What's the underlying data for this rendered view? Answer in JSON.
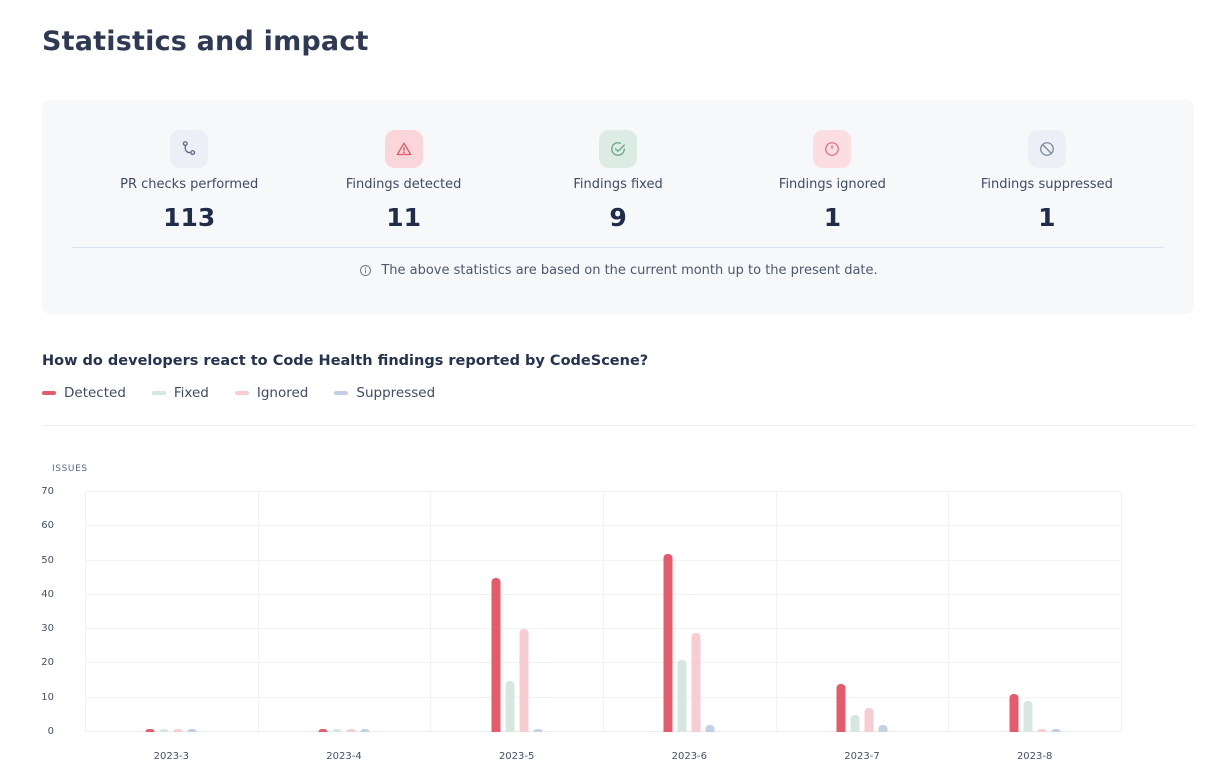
{
  "page": {
    "title": "Statistics and impact"
  },
  "stats_panel": {
    "items": [
      {
        "label": "PR checks performed",
        "value": "113",
        "icon": "pull-request",
        "icon_color": "#5d6c86",
        "icon_bg": "#eceff5"
      },
      {
        "label": "Findings detected",
        "value": "11",
        "icon": "warning-triangle",
        "icon_color": "#e05a68",
        "icon_bg": "#fad6da"
      },
      {
        "label": "Findings fixed",
        "value": "9",
        "icon": "check-circle",
        "icon_color": "#69a78c",
        "icon_bg": "#dcece4"
      },
      {
        "label": "Findings ignored",
        "value": "1",
        "icon": "alert-circle",
        "icon_color": "#e2737e",
        "icon_bg": "#fcdee1"
      },
      {
        "label": "Findings suppressed",
        "value": "1",
        "icon": "ban",
        "icon_color": "#7d8a9e",
        "icon_bg": "#eceff5"
      }
    ],
    "note": "The above statistics are based on the current month up to the present date."
  },
  "section": {
    "heading": "How do developers react to Code Health findings reported by CodeScene?"
  },
  "chart_data": {
    "type": "bar",
    "title": "",
    "xlabel": "",
    "ylabel": "ISSUES",
    "categories": [
      "2023-3",
      "2023-4",
      "2023-5",
      "2023-6",
      "2023-7",
      "2023-8"
    ],
    "series": [
      {
        "name": "Detected",
        "color": "#e45b6b",
        "values": [
          1,
          1,
          45,
          52,
          14,
          11
        ]
      },
      {
        "name": "Fixed",
        "color": "#d5e7de",
        "values": [
          1,
          1,
          15,
          21,
          5,
          9
        ]
      },
      {
        "name": "Ignored",
        "color": "#f8cdd2",
        "values": [
          1,
          1,
          30,
          29,
          7,
          1
        ]
      },
      {
        "name": "Suppressed",
        "color": "#c3cfe3",
        "values": [
          1,
          1,
          1,
          2,
          2,
          1
        ]
      }
    ],
    "ylim": [
      0,
      70
    ],
    "ytick_step": 10,
    "grid": true,
    "legend_position": "top-left"
  }
}
